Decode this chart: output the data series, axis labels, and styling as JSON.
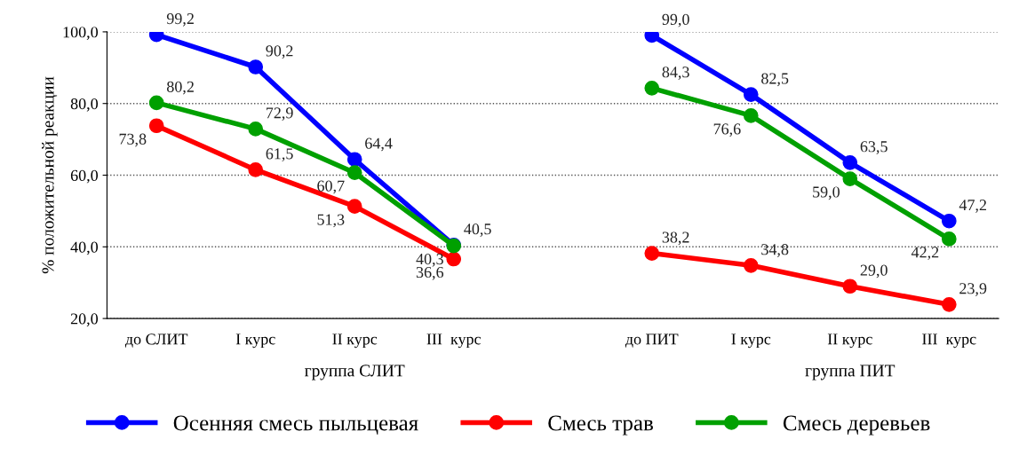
{
  "chart_data": {
    "type": "line",
    "ylabel": "% положительной реакции",
    "categories": [
      "до СЛИТ",
      "I курс",
      "II курс",
      "III  курс",
      null,
      "до ПИТ",
      "I курс",
      "II курс",
      "III  курс"
    ],
    "series": [
      {
        "name": "Осенняя смесь пыльцевая",
        "color": "#0000ff",
        "values": [
          99.2,
          90.2,
          64.4,
          40.5,
          null,
          99.0,
          82.5,
          63.5,
          47.2
        ],
        "value_labels": [
          "99,2",
          "90,2",
          "64,4",
          "40,5",
          null,
          "99,0",
          "82,5",
          "63,5",
          "47,2"
        ]
      },
      {
        "name": "Смесь трав",
        "color": "#ff0000",
        "values": [
          73.8,
          61.5,
          51.3,
          36.6,
          null,
          38.2,
          34.8,
          29.0,
          23.9
        ],
        "value_labels": [
          "73,8",
          "61,5",
          "51,3",
          "36,6",
          null,
          "38,2",
          "34,8",
          "29,0",
          "23,9"
        ]
      },
      {
        "name": "Смесь деревьев",
        "color": "#00a000",
        "values": [
          80.2,
          72.9,
          60.7,
          40.3,
          null,
          84.3,
          76.6,
          59.0,
          42.2
        ],
        "value_labels": [
          "80,2",
          "72,9",
          "60,7",
          "40,3",
          null,
          "84,3",
          "76,6",
          "59,0",
          "42,2"
        ]
      }
    ],
    "ylim": [
      20,
      100
    ],
    "yticks": [
      {
        "value": 20,
        "label": "20,0"
      },
      {
        "value": 40,
        "label": "40,0"
      },
      {
        "value": 60,
        "label": "60,0"
      },
      {
        "value": 80,
        "label": "80,0"
      },
      {
        "value": 100,
        "label": "100,0"
      }
    ],
    "annotations": [
      "группа СЛИТ",
      "группа ПИТ"
    ],
    "grid": "y",
    "legend": "bottom",
    "marker": "circle",
    "line_style": "solid"
  }
}
